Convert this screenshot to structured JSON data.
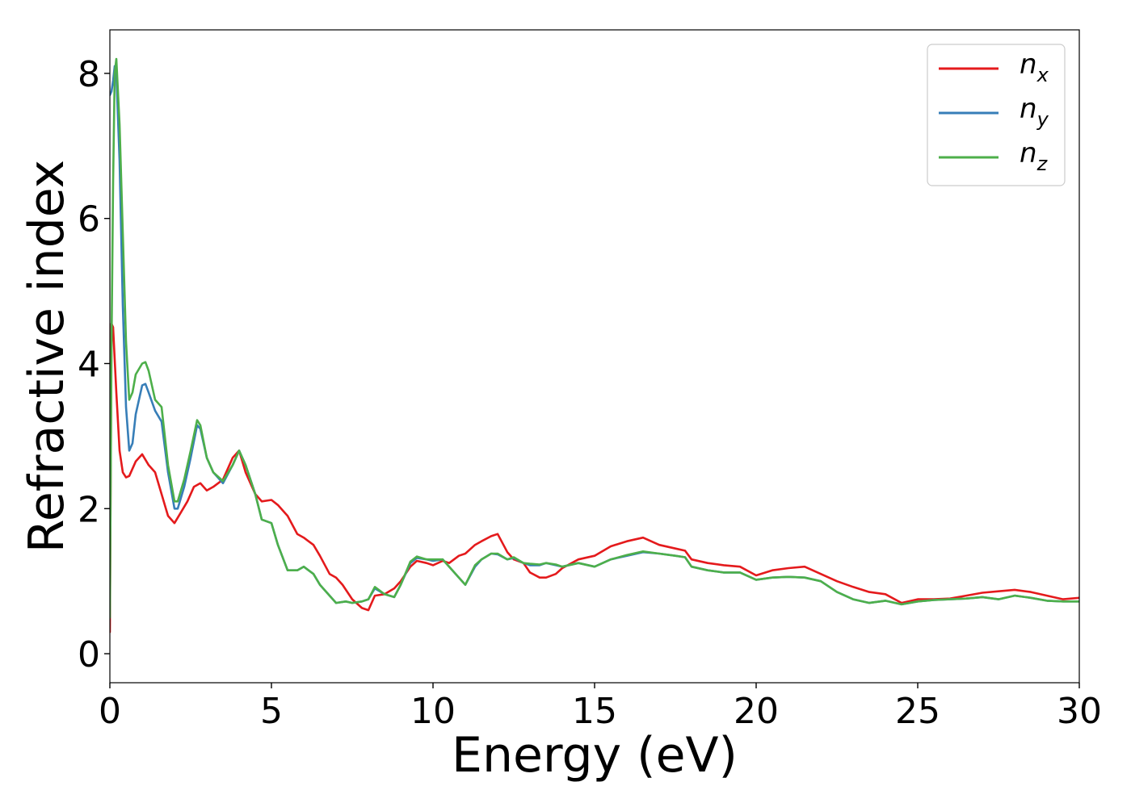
{
  "chart_data": {
    "type": "line",
    "xlabel": "Energy (eV)",
    "ylabel": "Refractive index",
    "xlim": [
      0,
      30
    ],
    "ylim": [
      -0.4,
      8.6
    ],
    "xticks": [
      0,
      5,
      10,
      15,
      20,
      25,
      30
    ],
    "yticks": [
      0,
      2,
      4,
      6,
      8
    ],
    "grid": false,
    "legend_position": "top-right",
    "series": [
      {
        "name": "n",
        "subscript": "x",
        "color": "#e41a1c",
        "x": [
          0,
          0.05,
          0.1,
          0.2,
          0.3,
          0.4,
          0.5,
          0.6,
          0.8,
          1.0,
          1.2,
          1.4,
          1.6,
          1.8,
          2.0,
          2.2,
          2.4,
          2.6,
          2.8,
          3.0,
          3.2,
          3.5,
          3.8,
          4.0,
          4.2,
          4.5,
          4.7,
          5.0,
          5.2,
          5.5,
          5.8,
          6.0,
          6.3,
          6.5,
          6.8,
          7.0,
          7.2,
          7.5,
          7.8,
          8.0,
          8.2,
          8.5,
          8.8,
          9.0,
          9.3,
          9.5,
          9.8,
          10.0,
          10.3,
          10.5,
          10.8,
          11.0,
          11.3,
          11.5,
          11.8,
          12.0,
          12.3,
          12.5,
          12.8,
          13.0,
          13.3,
          13.5,
          13.8,
          14.0,
          14.5,
          15.0,
          15.5,
          16.0,
          16.5,
          17.0,
          17.5,
          17.8,
          18.0,
          18.5,
          19.0,
          19.5,
          20.0,
          20.5,
          21.0,
          21.5,
          22.0,
          22.5,
          23.0,
          23.5,
          24.0,
          24.5,
          25.0,
          25.5,
          26.0,
          26.5,
          27.0,
          27.5,
          28.0,
          28.5,
          29.0,
          29.5,
          30.0
        ],
        "y": [
          0.3,
          4.55,
          4.5,
          3.6,
          2.8,
          2.5,
          2.43,
          2.45,
          2.65,
          2.75,
          2.6,
          2.5,
          2.2,
          1.9,
          1.8,
          1.95,
          2.1,
          2.3,
          2.35,
          2.25,
          2.3,
          2.4,
          2.7,
          2.8,
          2.5,
          2.2,
          2.1,
          2.12,
          2.05,
          1.9,
          1.65,
          1.6,
          1.5,
          1.35,
          1.1,
          1.05,
          0.95,
          0.75,
          0.63,
          0.6,
          0.8,
          0.82,
          0.9,
          1.0,
          1.2,
          1.28,
          1.25,
          1.22,
          1.28,
          1.25,
          1.35,
          1.38,
          1.5,
          1.55,
          1.62,
          1.65,
          1.4,
          1.3,
          1.25,
          1.12,
          1.05,
          1.05,
          1.1,
          1.18,
          1.3,
          1.35,
          1.48,
          1.55,
          1.6,
          1.5,
          1.45,
          1.42,
          1.3,
          1.25,
          1.22,
          1.2,
          1.08,
          1.15,
          1.18,
          1.2,
          1.1,
          1.0,
          0.92,
          0.85,
          0.82,
          0.7,
          0.75,
          0.75,
          0.76,
          0.8,
          0.84,
          0.86,
          0.88,
          0.85,
          0.8,
          0.75,
          0.77
        ]
      },
      {
        "name": "n",
        "subscript": "y",
        "color": "#377eb8",
        "x": [
          0,
          0.05,
          0.1,
          0.15,
          0.2,
          0.3,
          0.4,
          0.5,
          0.6,
          0.7,
          0.8,
          1.0,
          1.1,
          1.2,
          1.4,
          1.6,
          1.8,
          2.0,
          2.1,
          2.3,
          2.5,
          2.7,
          2.8,
          3.0,
          3.2,
          3.5,
          3.8,
          4.0,
          4.2,
          4.5,
          4.7,
          5.0,
          5.2,
          5.5,
          5.8,
          6.0,
          6.3,
          6.5,
          6.8,
          7.0,
          7.3,
          7.5,
          7.8,
          8.0,
          8.2,
          8.5,
          8.8,
          9.0,
          9.3,
          9.5,
          9.8,
          10.0,
          10.3,
          10.5,
          10.8,
          11.0,
          11.3,
          11.5,
          11.8,
          12.0,
          12.3,
          12.5,
          12.8,
          13.0,
          13.3,
          13.5,
          13.8,
          14.0,
          14.5,
          15.0,
          15.5,
          16.0,
          16.5,
          17.0,
          17.5,
          17.8,
          18.0,
          18.5,
          19.0,
          19.5,
          20.0,
          20.5,
          21.0,
          21.5,
          22.0,
          22.5,
          23.0,
          23.5,
          24.0,
          24.5,
          25.0,
          25.5,
          26.0,
          26.5,
          27.0,
          27.5,
          28.0,
          28.5,
          29.0,
          29.5,
          30.0
        ],
        "y": [
          7.7,
          7.75,
          7.9,
          8.1,
          8.0,
          6.8,
          4.8,
          3.4,
          2.8,
          2.9,
          3.3,
          3.7,
          3.72,
          3.6,
          3.35,
          3.2,
          2.5,
          2.0,
          2.0,
          2.3,
          2.7,
          3.15,
          3.1,
          2.7,
          2.5,
          2.35,
          2.6,
          2.8,
          2.6,
          2.2,
          1.85,
          1.8,
          1.5,
          1.15,
          1.15,
          1.2,
          1.1,
          0.95,
          0.8,
          0.7,
          0.72,
          0.7,
          0.72,
          0.75,
          0.9,
          0.82,
          0.78,
          0.95,
          1.25,
          1.32,
          1.3,
          1.28,
          1.3,
          1.2,
          1.05,
          0.95,
          1.2,
          1.3,
          1.38,
          1.37,
          1.3,
          1.32,
          1.25,
          1.22,
          1.22,
          1.25,
          1.22,
          1.2,
          1.25,
          1.2,
          1.3,
          1.35,
          1.4,
          1.38,
          1.35,
          1.33,
          1.2,
          1.15,
          1.12,
          1.12,
          1.02,
          1.05,
          1.06,
          1.05,
          1.0,
          0.85,
          0.75,
          0.7,
          0.73,
          0.68,
          0.72,
          0.74,
          0.75,
          0.76,
          0.78,
          0.75,
          0.8,
          0.77,
          0.73,
          0.72,
          0.72
        ]
      },
      {
        "name": "n",
        "subscript": "z",
        "color": "#4daf4a",
        "x": [
          0,
          0.05,
          0.1,
          0.15,
          0.2,
          0.3,
          0.4,
          0.5,
          0.6,
          0.7,
          0.8,
          1.0,
          1.1,
          1.2,
          1.4,
          1.6,
          1.8,
          2.0,
          2.1,
          2.3,
          2.5,
          2.7,
          2.8,
          3.0,
          3.2,
          3.5,
          3.8,
          4.0,
          4.2,
          4.5,
          4.7,
          5.0,
          5.2,
          5.5,
          5.8,
          6.0,
          6.3,
          6.5,
          6.8,
          7.0,
          7.3,
          7.5,
          7.8,
          8.0,
          8.2,
          8.5,
          8.8,
          9.0,
          9.3,
          9.5,
          9.8,
          10.0,
          10.3,
          10.5,
          10.8,
          11.0,
          11.3,
          11.5,
          11.8,
          12.0,
          12.3,
          12.5,
          12.8,
          13.0,
          13.3,
          13.5,
          13.8,
          14.0,
          14.5,
          15.0,
          15.5,
          16.0,
          16.5,
          17.0,
          17.5,
          17.8,
          18.0,
          18.5,
          19.0,
          19.5,
          20.0,
          20.5,
          21.0,
          21.5,
          22.0,
          22.5,
          23.0,
          23.5,
          24.0,
          24.5,
          25.0,
          25.5,
          26.0,
          26.5,
          27.0,
          27.5,
          28.0,
          28.5,
          29.0,
          29.5,
          30.0
        ],
        "y": [
          0.5,
          4.2,
          6.5,
          8.0,
          8.2,
          7.3,
          5.8,
          4.3,
          3.5,
          3.6,
          3.85,
          4.0,
          4.02,
          3.9,
          3.5,
          3.4,
          2.6,
          2.1,
          2.1,
          2.4,
          2.8,
          3.22,
          3.15,
          2.7,
          2.5,
          2.38,
          2.6,
          2.8,
          2.6,
          2.2,
          1.85,
          1.8,
          1.5,
          1.15,
          1.15,
          1.2,
          1.1,
          0.95,
          0.8,
          0.7,
          0.72,
          0.7,
          0.72,
          0.75,
          0.92,
          0.82,
          0.78,
          0.95,
          1.27,
          1.34,
          1.3,
          1.3,
          1.3,
          1.2,
          1.05,
          0.95,
          1.22,
          1.3,
          1.38,
          1.38,
          1.3,
          1.33,
          1.25,
          1.24,
          1.23,
          1.25,
          1.23,
          1.2,
          1.25,
          1.2,
          1.3,
          1.36,
          1.41,
          1.38,
          1.35,
          1.33,
          1.2,
          1.15,
          1.12,
          1.12,
          1.02,
          1.05,
          1.06,
          1.05,
          1.0,
          0.85,
          0.75,
          0.7,
          0.73,
          0.68,
          0.72,
          0.74,
          0.75,
          0.76,
          0.78,
          0.75,
          0.8,
          0.77,
          0.73,
          0.72,
          0.72
        ]
      }
    ]
  }
}
